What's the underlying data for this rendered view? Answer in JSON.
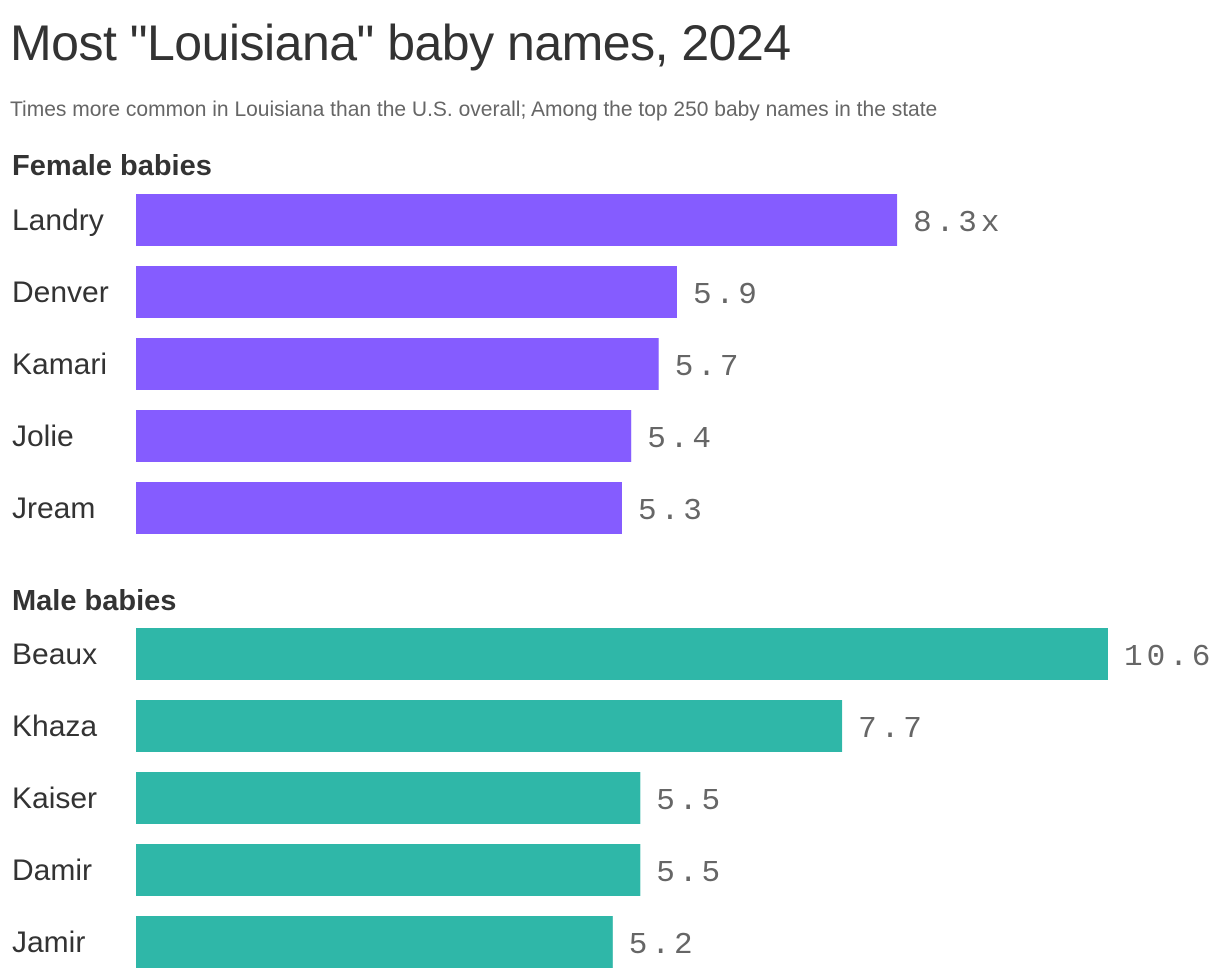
{
  "title": "Most \"Louisiana\" baby names, 2024",
  "subtitle": "Times more common in Louisiana than the U.S. overall; Among the top 250 baby names in the state",
  "chart_data": [
    {
      "type": "bar",
      "orientation": "horizontal",
      "title": "Female babies",
      "categories": [
        "Landry",
        "Denver",
        "Kamari",
        "Jolie",
        "Jream"
      ],
      "values": [
        8.3,
        5.9,
        5.7,
        5.4,
        5.3
      ],
      "value_labels": [
        "8.3x",
        "5.9",
        "5.7",
        "5.4",
        "5.3"
      ],
      "color": "#855cff",
      "xlim": [
        0,
        10.6
      ],
      "grid": false
    },
    {
      "type": "bar",
      "orientation": "horizontal",
      "title": "Male babies",
      "categories": [
        "Beaux",
        "Khaza",
        "Kaiser",
        "Damir",
        "Jamir"
      ],
      "values": [
        10.6,
        7.7,
        5.5,
        5.5,
        5.2
      ],
      "value_labels": [
        "10.6",
        "7.7",
        "5.5",
        "5.5",
        "5.2"
      ],
      "color": "#2fb7a8",
      "xlim": [
        0,
        10.6
      ],
      "grid": false
    }
  ]
}
